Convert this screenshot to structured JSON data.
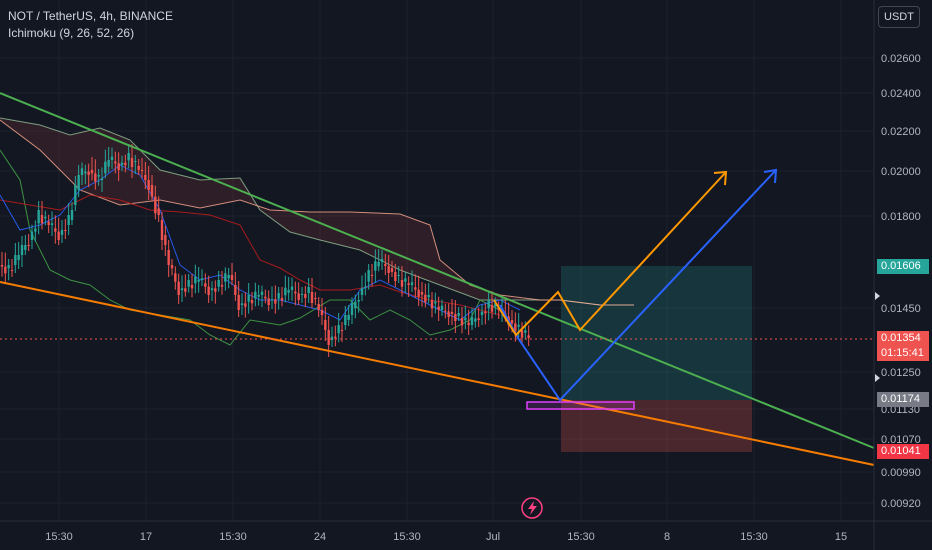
{
  "header": {
    "symbol_line": "NOT / TetherUS, 4h, BINANCE",
    "indicator_line": "Ichimoku (9, 26, 52, 26)",
    "currency_button": "USDT"
  },
  "colors": {
    "background": "#131722",
    "bull_candle": "#26a69a",
    "bear_candle": "#ef5350",
    "green_trendline": "#4caf50",
    "orange_trendline": "#f57c00",
    "blue_path": "#2962ff",
    "orange_path": "#ff9800",
    "take_profit_zone": "#26a69a",
    "stop_loss_zone": "#ef5350",
    "support_box": "#e040fb"
  },
  "chart_data": {
    "type": "candlestick",
    "y_axis": {
      "range": [
        0.0089,
        0.0269
      ],
      "tick_labels": [
        "0.02600",
        "0.02400",
        "0.02200",
        "0.02000",
        "0.01800",
        "0.01450",
        "0.01250",
        "0.01130",
        "0.01070",
        "0.00990",
        "0.00920"
      ]
    },
    "x_axis": {
      "tick_labels": [
        "15:30",
        "17",
        "15:30",
        "24",
        "15:30",
        "Jul",
        "15:30",
        "8",
        "15:30",
        "15"
      ]
    },
    "price_labels": {
      "target": "0.01606",
      "last_price": "0.01354",
      "countdown": "01:15:41",
      "entry": "0.01174",
      "stop": "0.01041"
    },
    "position": {
      "target": 0.01606,
      "entry": 0.01174,
      "stop": 0.01041
    },
    "trendlines": [
      {
        "name": "resistance",
        "color": "#4caf50"
      },
      {
        "name": "support",
        "color": "#f57c00"
      }
    ]
  },
  "footer": {
    "logo_icon": "lightning-icon"
  }
}
